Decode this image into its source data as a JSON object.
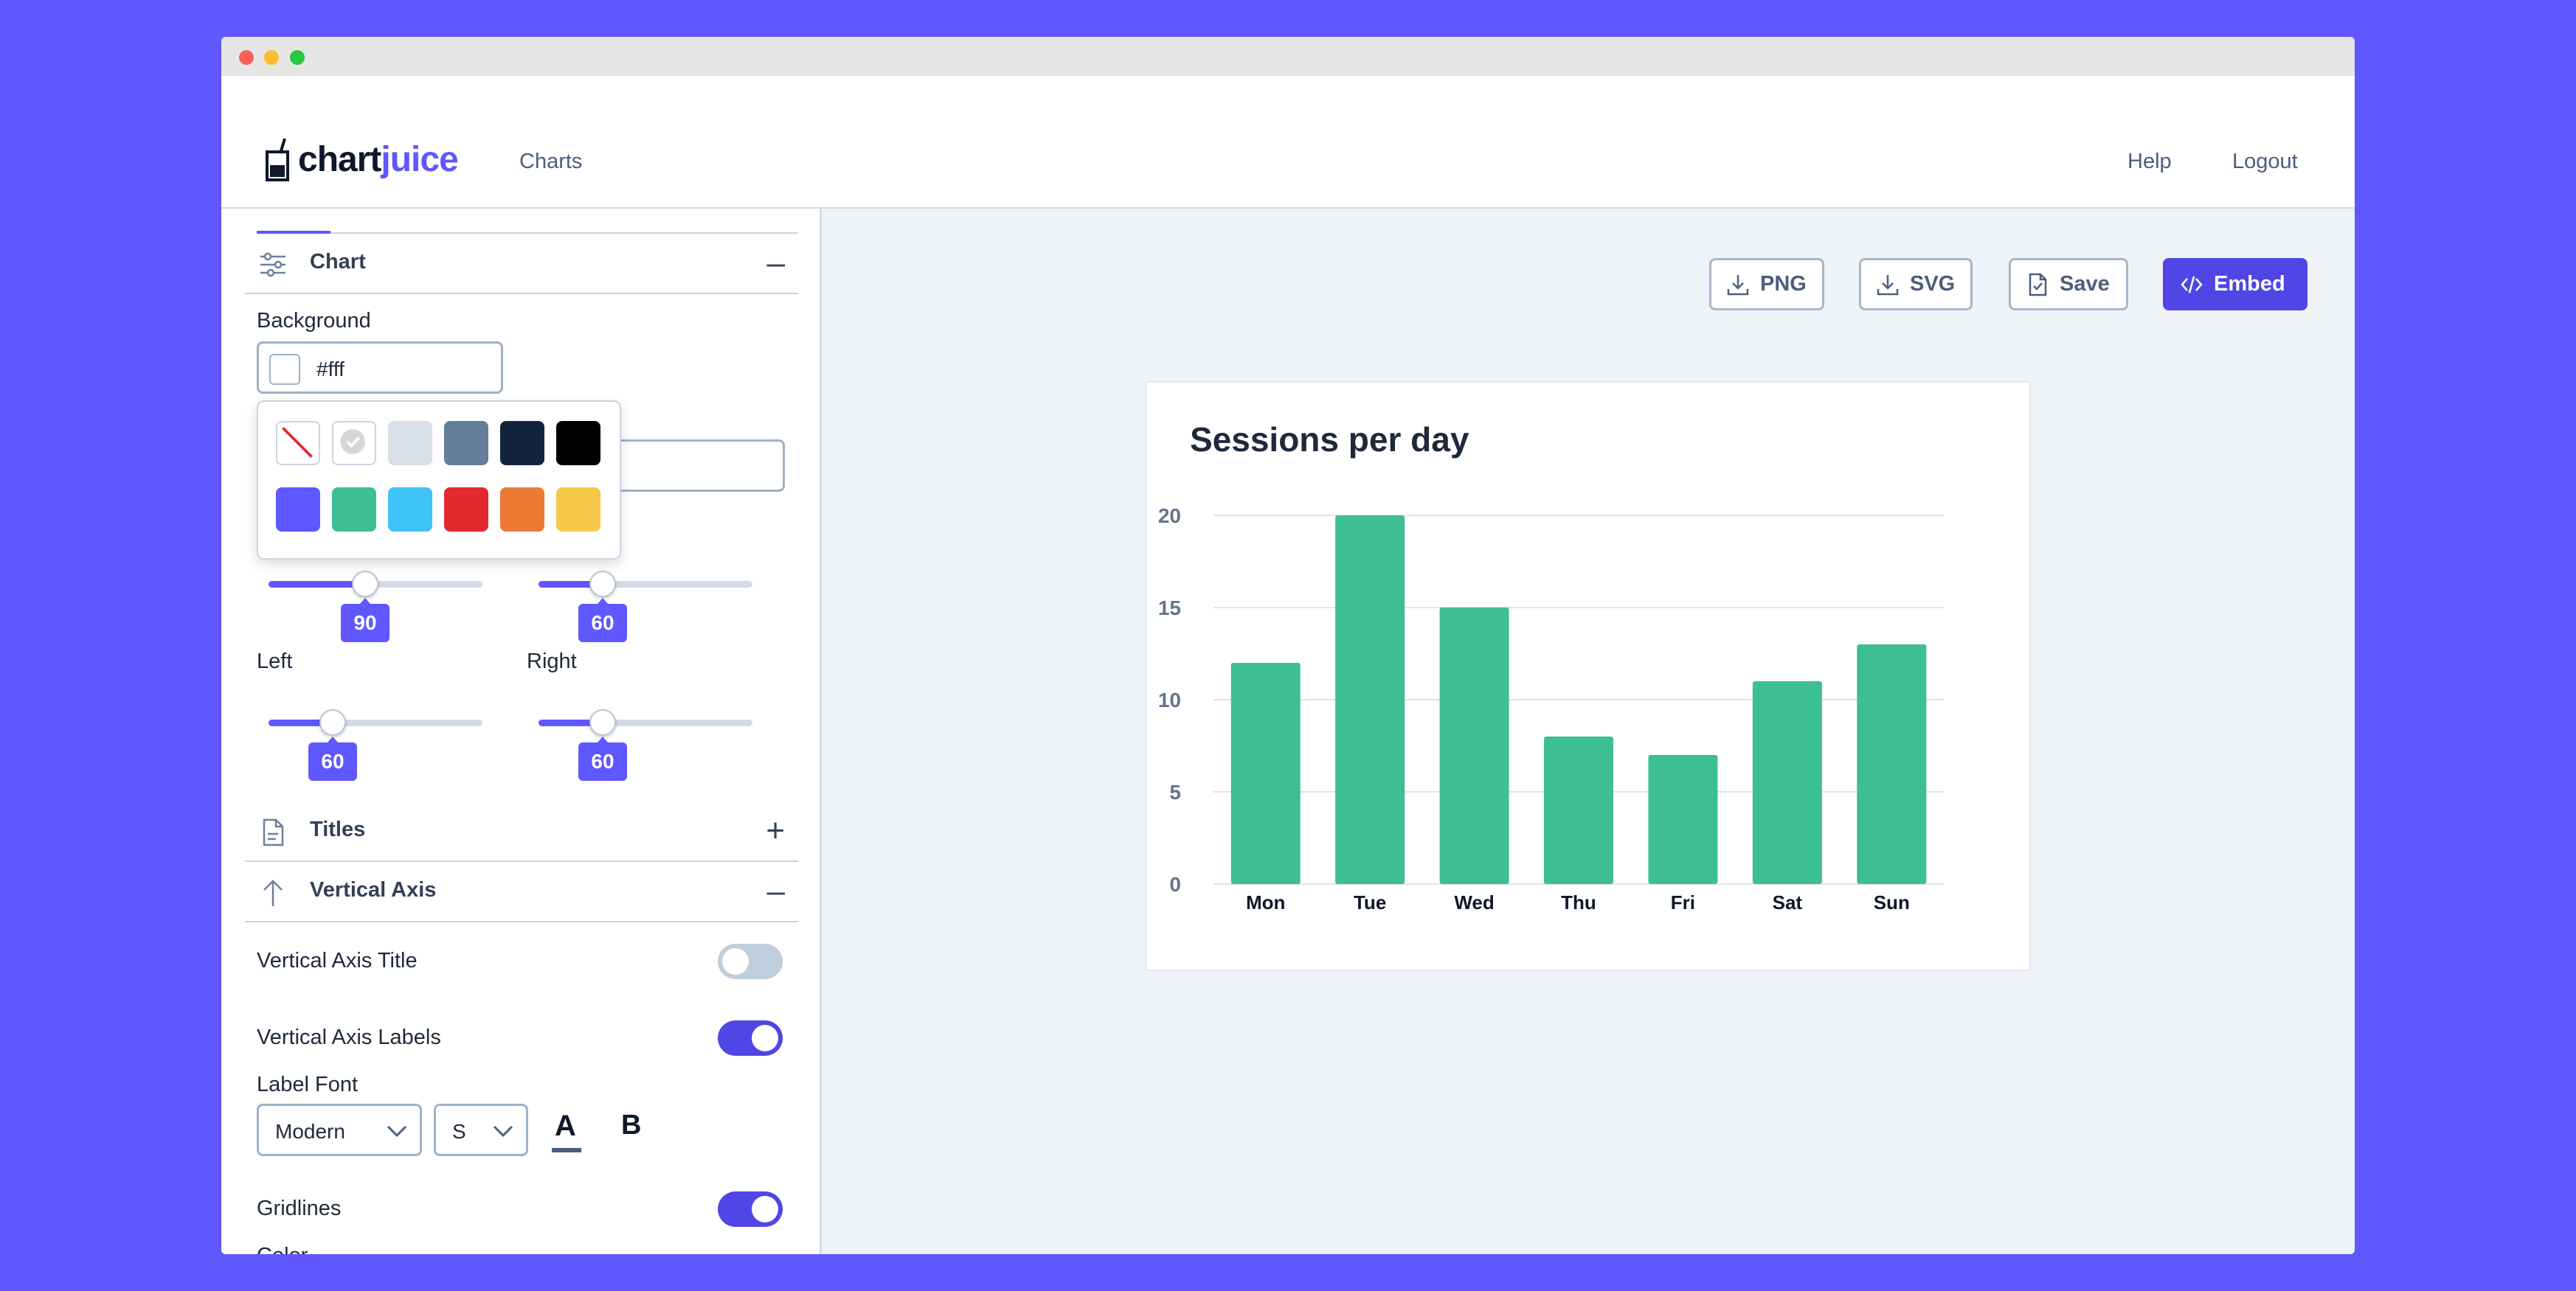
{
  "app": {
    "logo_part1": "chart",
    "logo_part2": "juice",
    "nav": {
      "charts": "Charts",
      "help": "Help",
      "logout": "Logout"
    }
  },
  "sidebar": {
    "chart_section": {
      "label": "Chart",
      "toggle": "–",
      "icon": "sliders-icon"
    },
    "background": {
      "label": "Background",
      "value": "#fff"
    },
    "palette": [
      {
        "name": "none",
        "color": "#ffffff"
      },
      {
        "name": "white-selected",
        "color": "#e6e6e6"
      },
      {
        "name": "light-gray",
        "color": "#d9dfe7"
      },
      {
        "name": "slate",
        "color": "#647d99"
      },
      {
        "name": "navy",
        "color": "#13243d"
      },
      {
        "name": "black",
        "color": "#000000"
      },
      {
        "name": "indigo",
        "color": "#5f57ff"
      },
      {
        "name": "green",
        "color": "#3dbe94"
      },
      {
        "name": "sky",
        "color": "#3fc2f5"
      },
      {
        "name": "red",
        "color": "#e3282f"
      },
      {
        "name": "orange",
        "color": "#ec7a35"
      },
      {
        "name": "yellow",
        "color": "#f6c94b"
      }
    ],
    "margins": {
      "top": {
        "value": 90,
        "fraction": 0.45
      },
      "bottom": {
        "value": 60,
        "fraction": 0.3
      },
      "left_label": "Left",
      "right_label": "Right",
      "left": {
        "value": 60,
        "fraction": 0.3
      },
      "right": {
        "value": 60,
        "fraction": 0.3
      }
    },
    "titles_section": {
      "label": "Titles",
      "toggle": "+",
      "icon": "document-icon"
    },
    "vaxis_section": {
      "label": "Vertical Axis",
      "toggle": "–",
      "icon": "arrow-up-icon"
    },
    "vaxis_title": {
      "label": "Vertical Axis Title",
      "on": false
    },
    "vaxis_labels": {
      "label": "Vertical Axis Labels",
      "on": true
    },
    "label_font": {
      "label": "Label Font",
      "family": "Modern",
      "size": "S",
      "color_btn": "A",
      "bold_btn": "B"
    },
    "gridlines": {
      "label": "Gridlines",
      "on": true
    },
    "color": {
      "label": "Color"
    }
  },
  "toolbar": {
    "png": "PNG",
    "svg": "SVG",
    "save": "Save",
    "embed": "Embed"
  },
  "colors": {
    "accent": "#5f57ff",
    "bar": "#3dbe94"
  },
  "chart_data": {
    "type": "bar",
    "title": "Sessions per day",
    "categories": [
      "Mon",
      "Tue",
      "Wed",
      "Thu",
      "Fri",
      "Sat",
      "Sun"
    ],
    "values": [
      12,
      20,
      15,
      8,
      7,
      11,
      13
    ],
    "ylim": [
      0,
      20
    ],
    "yticks": [
      0,
      5,
      10,
      15,
      20
    ],
    "grid": true,
    "xlabel": "",
    "ylabel": ""
  }
}
